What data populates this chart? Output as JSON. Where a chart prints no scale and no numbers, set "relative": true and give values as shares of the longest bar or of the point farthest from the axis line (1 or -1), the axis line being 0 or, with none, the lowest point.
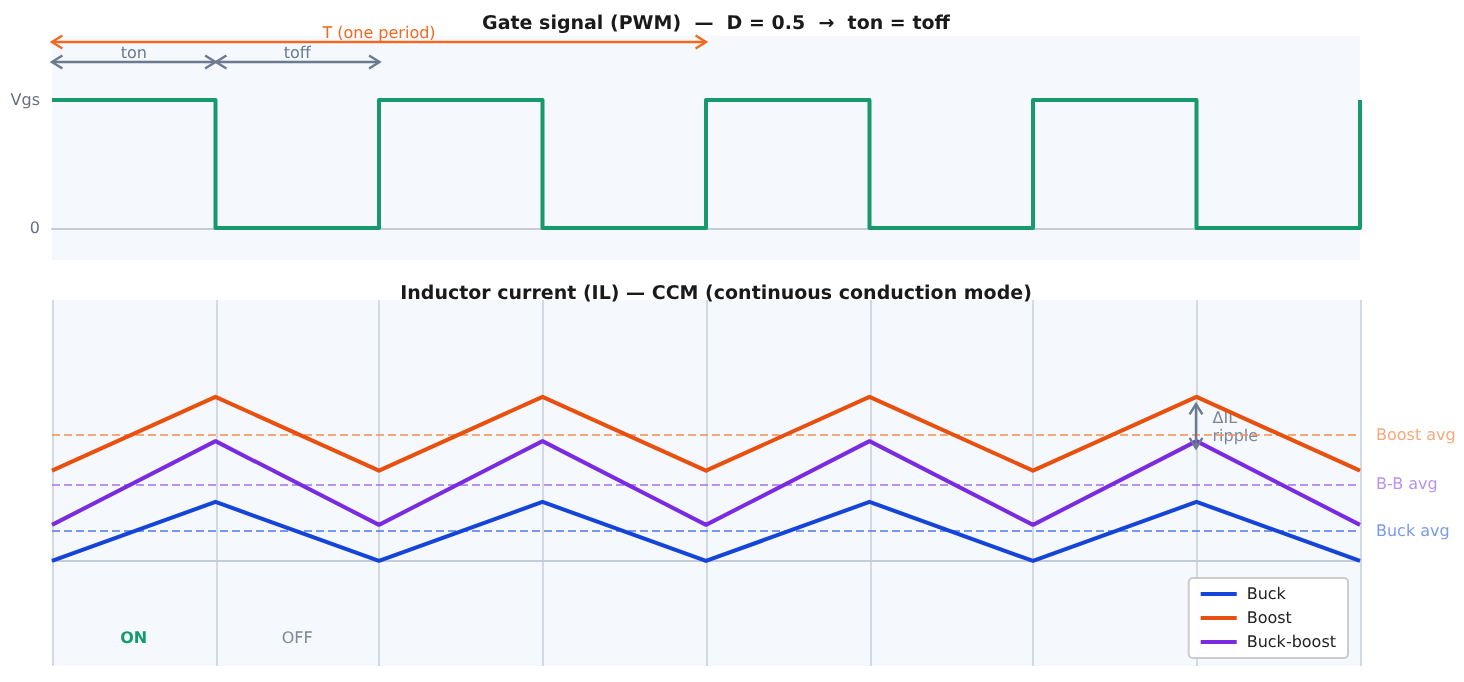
{
  "chart_data": [
    {
      "type": "step",
      "title": "Gate signal (PWM)  —  D = 0.5  →  ton = toff",
      "relative": true,
      "categories": [
        null,
        null,
        null,
        null,
        null,
        null,
        null,
        null,
        null
      ],
      "series": [
        {
          "color": "#16996b",
          "values": [
            1,
            0,
            1,
            0,
            1,
            0,
            1,
            0,
            1
          ]
        }
      ],
      "grid": false,
      "annotations": [
        "T (one period)",
        "ton",
        "toff",
        "Vgs",
        "0"
      ]
    },
    {
      "type": "line",
      "title": "Inductor current (IL) — CCM (continuous conduction mode)",
      "relative": true,
      "categories": [
        null,
        null,
        null,
        null,
        null,
        null,
        null,
        null,
        null
      ],
      "series": [
        {
          "name": "Buck",
          "color": "#1444d8",
          "values": [
            0,
            0.36,
            0,
            0.36,
            0,
            0.36,
            0,
            0.36,
            0
          ]
        },
        {
          "name": "Boost",
          "color": "#e8500f",
          "values": [
            0.55,
            1,
            0.55,
            1,
            0.55,
            1,
            0.55,
            1,
            0.55
          ]
        },
        {
          "name": "Buck-boost",
          "color": "#7a2be0",
          "values": [
            0.22,
            0.73,
            0.22,
            0.73,
            0.22,
            0.73,
            0.22,
            0.73,
            0.22
          ]
        }
      ],
      "grid": "x",
      "legend": "bottom right",
      "ref_lines": [
        {
          "axis": "y",
          "value": 0.77,
          "label": "Boost avg",
          "color": "#f5935a",
          "line_style": "dashed"
        },
        {
          "axis": "y",
          "value": 0.47,
          "label": "B-B avg",
          "color": "#a678ee",
          "line_style": "dashed"
        },
        {
          "axis": "y",
          "value": 0.18,
          "label": "Buck avg",
          "color": "#5a7fe6",
          "line_style": "dashed"
        }
      ],
      "annotations": [
        "ON",
        "OFF",
        "ΔIL ripple"
      ]
    }
  ]
}
